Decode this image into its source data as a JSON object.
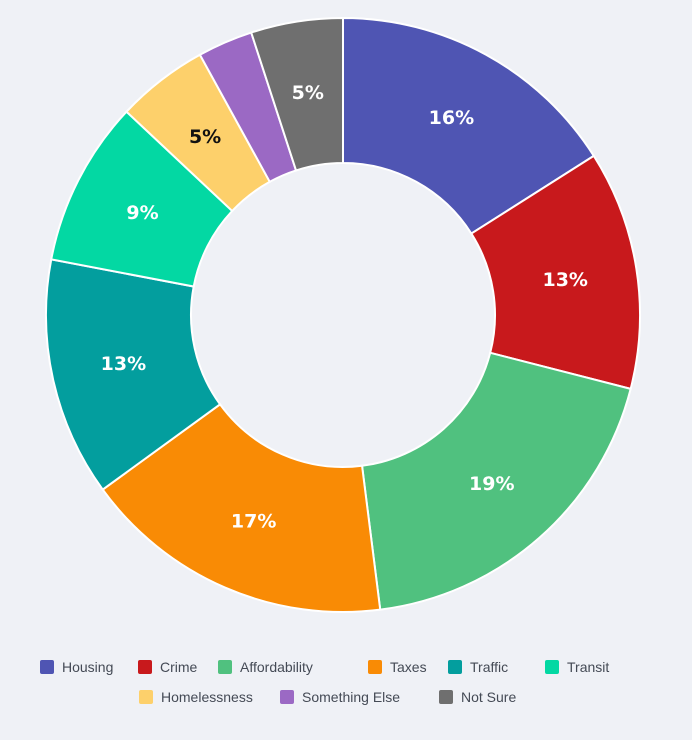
{
  "chart_data": {
    "type": "pie",
    "donut": true,
    "legend_position": "bottom",
    "slices": [
      {
        "name": "Housing",
        "value": 16,
        "label": "16%",
        "color": "#4f55b3",
        "label_color": "#ffffff"
      },
      {
        "name": "Crime",
        "value": 13,
        "label": "13%",
        "color": "#c8191c",
        "label_color": "#ffffff"
      },
      {
        "name": "Affordability",
        "value": 19,
        "label": "19%",
        "color": "#50c17f",
        "label_color": "#ffffff"
      },
      {
        "name": "Taxes",
        "value": 17,
        "label": "17%",
        "color": "#f98b05",
        "label_color": "#ffffff"
      },
      {
        "name": "Traffic",
        "value": 13,
        "label": "13%",
        "color": "#039e9e",
        "label_color": "#ffffff"
      },
      {
        "name": "Transit",
        "value": 9,
        "label": "9%",
        "color": "#03d8a3",
        "label_color": "#ffffff"
      },
      {
        "name": "Homelessness",
        "value": 5,
        "label": "5%",
        "color": "#fdd06b",
        "label_color": "#111111"
      },
      {
        "name": "Something Else",
        "value": 3,
        "label": "",
        "color": "#9b69c4",
        "label_color": "#ffffff"
      },
      {
        "name": "Not Sure",
        "value": 5,
        "label": "5%",
        "color": "#6f6f6f",
        "label_color": "#ffffff"
      }
    ]
  },
  "legend": {
    "row1": [
      "Housing",
      "Crime",
      "Affordability",
      "Taxes",
      "Traffic",
      "Transit"
    ],
    "row2": [
      "Homelessness",
      "Something Else",
      "Not Sure"
    ]
  }
}
